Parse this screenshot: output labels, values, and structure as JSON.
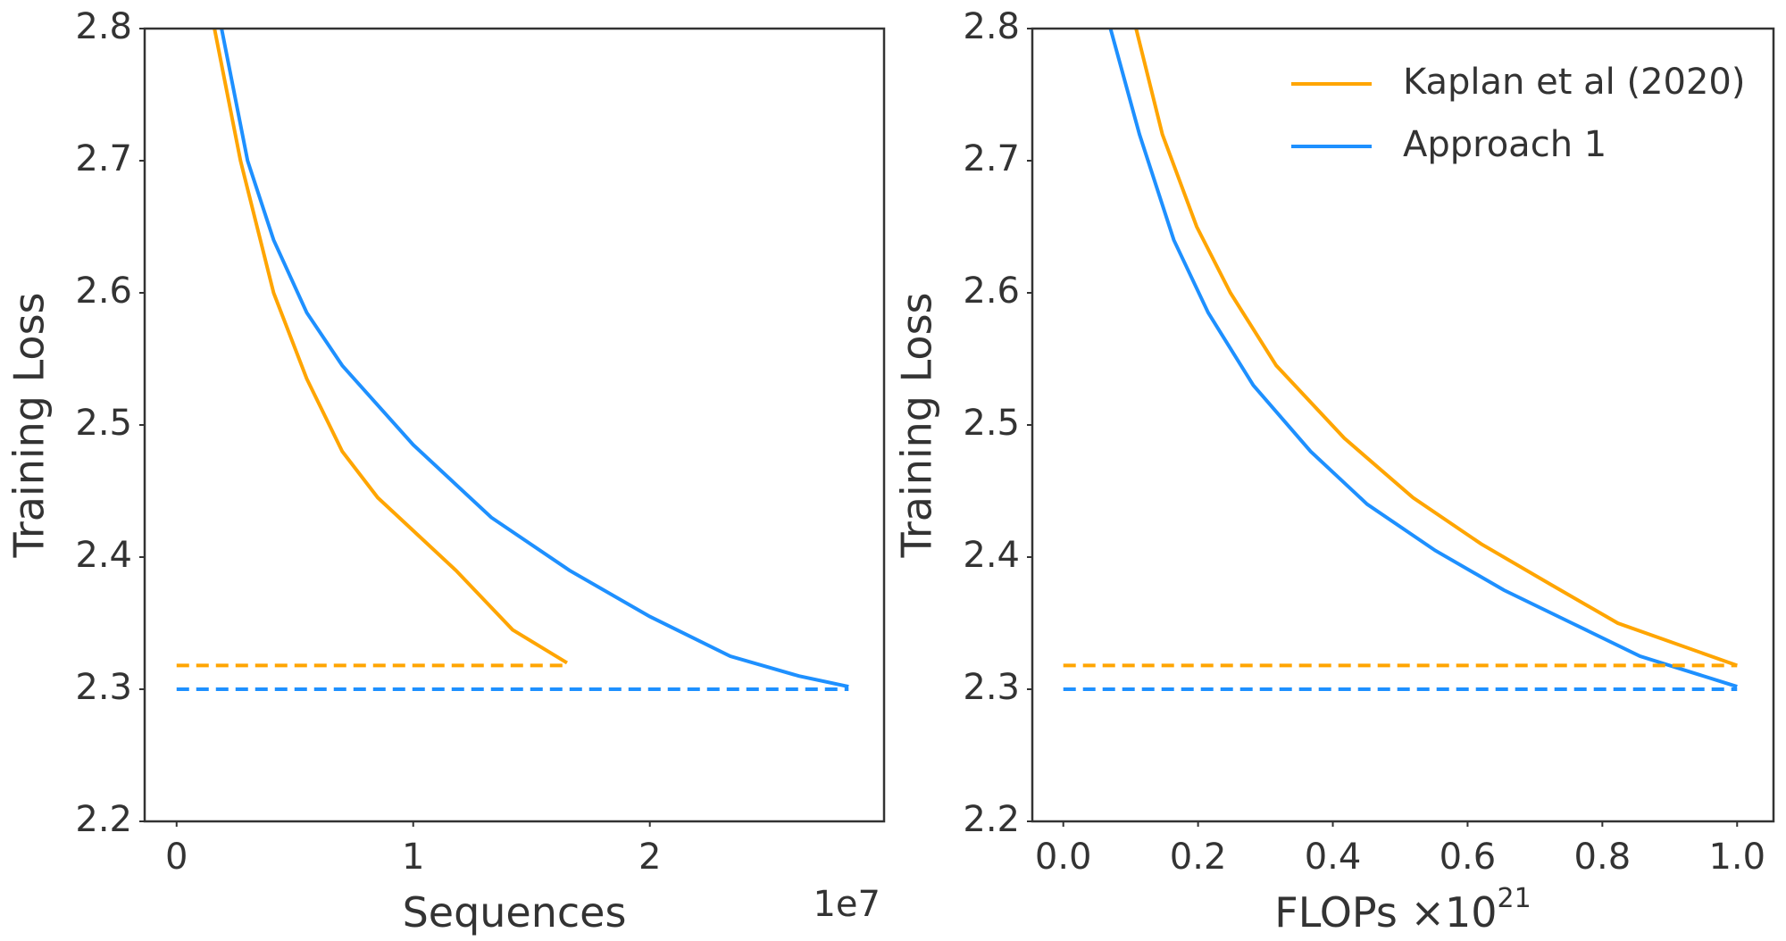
{
  "chart_data": [
    {
      "type": "line",
      "xlabel": "Sequences",
      "ylabel": "Training Loss",
      "x_offset_label": "1e7",
      "xlim": [
        -1350000,
        29900000
      ],
      "ylim": [
        2.2,
        2.8
      ],
      "xticks": [
        0,
        {
          "value": 10000000,
          "label": "1"
        },
        {
          "value": 20000000,
          "label": "2"
        }
      ],
      "yticks": [
        2.2,
        2.3,
        2.4,
        2.5,
        2.6,
        2.7,
        2.8
      ],
      "series": [
        {
          "color": "#ffa500",
          "x": [
            1600000,
            2700000,
            4100000,
            5500000,
            7000000,
            8500000,
            10000000,
            11800000,
            14200000,
            16500000
          ],
          "values": [
            2.8,
            2.7,
            2.6,
            2.535,
            2.48,
            2.445,
            2.42,
            2.39,
            2.345,
            2.32
          ]
        },
        {
          "color": "#1e90ff",
          "x": [
            1900000,
            3000000,
            4100000,
            5500000,
            7000000,
            10000000,
            13300000,
            16600000,
            20000000,
            23400000,
            26300000,
            28400000
          ],
          "values": [
            2.8,
            2.7,
            2.64,
            2.585,
            2.545,
            2.485,
            2.43,
            2.39,
            2.355,
            2.325,
            2.31,
            2.302
          ]
        },
        {
          "color": "#ffa500",
          "dashed": true,
          "x": [
            0,
            16500000
          ],
          "values": [
            2.318,
            2.318
          ]
        },
        {
          "color": "#1e90ff",
          "dashed": true,
          "x": [
            0,
            28400000
          ],
          "values": [
            2.3,
            2.3
          ]
        }
      ]
    },
    {
      "type": "line",
      "xlabel": "FLOPs ×10",
      "xlabel_exponent": "21",
      "ylabel": "Training Loss",
      "legend": "upper right",
      "xlim": [
        -0.046,
        1.054
      ],
      "ylim": [
        2.2,
        2.8
      ],
      "xticks": [
        {
          "value": 0,
          "label": "0.0"
        },
        0.2,
        0.4,
        0.6,
        0.8,
        {
          "value": 1,
          "label": "1.0"
        }
      ],
      "yticks": [
        2.2,
        2.3,
        2.4,
        2.5,
        2.6,
        2.7,
        2.8
      ],
      "series": [
        {
          "name": "Kaplan et al (2020)",
          "color": "#ffa500",
          "x": [
            0.108,
            0.147,
            0.198,
            0.248,
            0.316,
            0.417,
            0.519,
            0.62,
            0.721,
            0.823,
            1.0
          ],
          "values": [
            2.8,
            2.72,
            2.65,
            2.6,
            2.545,
            2.49,
            2.445,
            2.41,
            2.38,
            2.35,
            2.318
          ]
        },
        {
          "name": "Approach 1",
          "color": "#1e90ff",
          "x": [
            0.07,
            0.113,
            0.164,
            0.215,
            0.282,
            0.367,
            0.451,
            0.552,
            0.654,
            0.755,
            0.856,
            1.0
          ],
          "values": [
            2.8,
            2.72,
            2.64,
            2.585,
            2.53,
            2.48,
            2.44,
            2.405,
            2.375,
            2.35,
            2.325,
            2.302
          ]
        },
        {
          "color": "#ffa500",
          "dashed": true,
          "x": [
            0,
            1.0
          ],
          "values": [
            2.318,
            2.318
          ]
        },
        {
          "color": "#1e90ff",
          "dashed": true,
          "x": [
            0,
            1.0
          ],
          "values": [
            2.3,
            2.3
          ]
        }
      ]
    }
  ]
}
